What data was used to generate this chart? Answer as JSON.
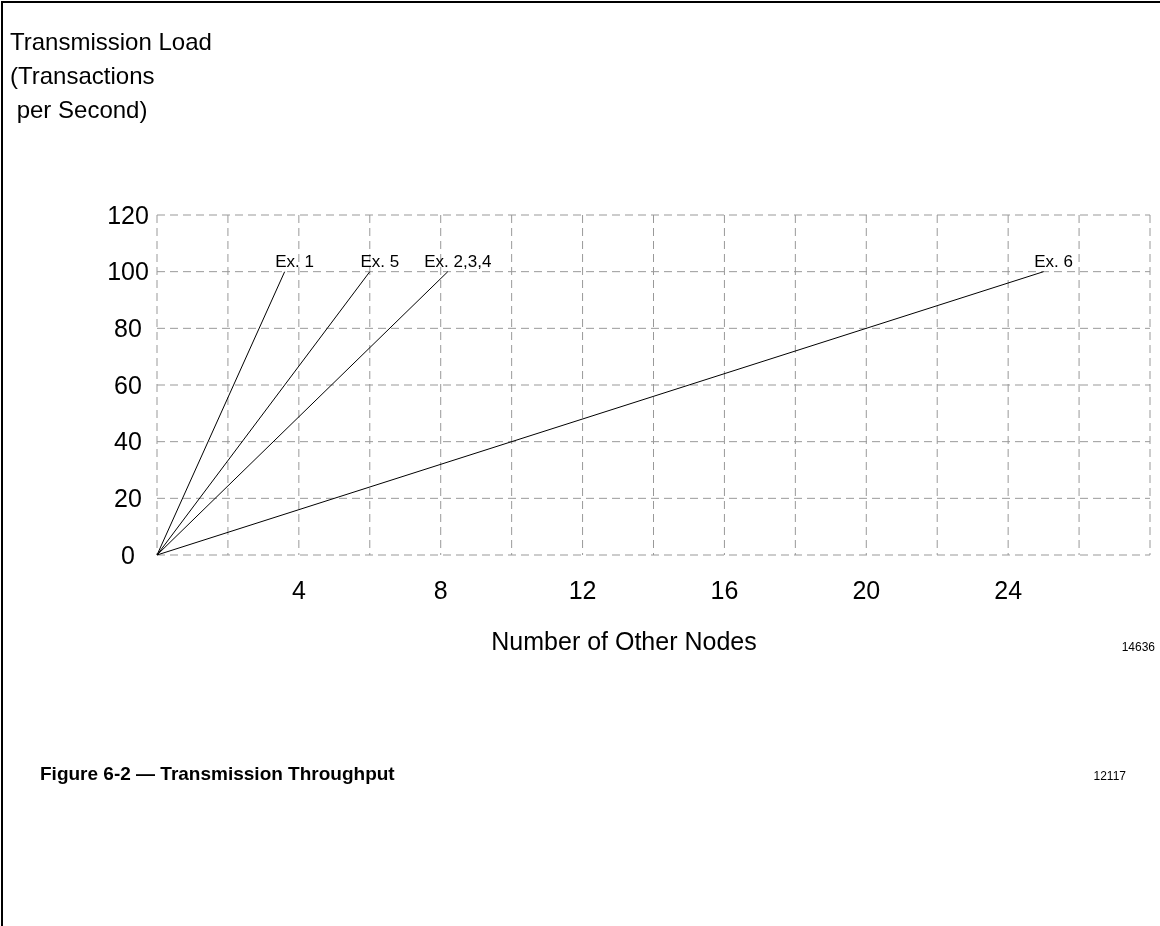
{
  "chart_data": {
    "type": "line",
    "title": "Figure 6-2 — Transmission Throughput",
    "xlabel": "Number of Other Nodes",
    "ylabel": "Transmission Load\n(Transactions\n per Second)",
    "series": [
      {
        "name": "Ex. 1",
        "color": "#000000",
        "x": [
          0,
          3.6
        ],
        "values": [
          0,
          100
        ]
      },
      {
        "name": "Ex. 5",
        "color": "#000000",
        "x": [
          0,
          6
        ],
        "values": [
          0,
          100
        ]
      },
      {
        "name": "Ex. 2,3,4",
        "color": "#000000",
        "x": [
          0,
          8.2
        ],
        "values": [
          0,
          100
        ]
      },
      {
        "name": "Ex. 6",
        "color": "#000000",
        "x": [
          0,
          25
        ],
        "values": [
          0,
          100
        ]
      }
    ],
    "xlim": [
      0,
      28
    ],
    "xticks": [
      {
        "value": 0,
        "label": null
      },
      {
        "value": 2,
        "label": null
      },
      4,
      {
        "value": 6,
        "label": null
      },
      8,
      {
        "value": 10,
        "label": null
      },
      12,
      {
        "value": 14,
        "label": null
      },
      16,
      {
        "value": 18,
        "label": null
      },
      20,
      {
        "value": 22,
        "label": null
      },
      24,
      {
        "value": 26,
        "label": null
      },
      {
        "value": 28,
        "label": null
      }
    ],
    "ylim": [
      0,
      120
    ],
    "yticks": [
      0,
      20,
      40,
      60,
      80,
      100,
      120
    ],
    "grid": true,
    "line_style": "solid",
    "marker": "none",
    "annotations": [
      "14636",
      "12117"
    ]
  }
}
